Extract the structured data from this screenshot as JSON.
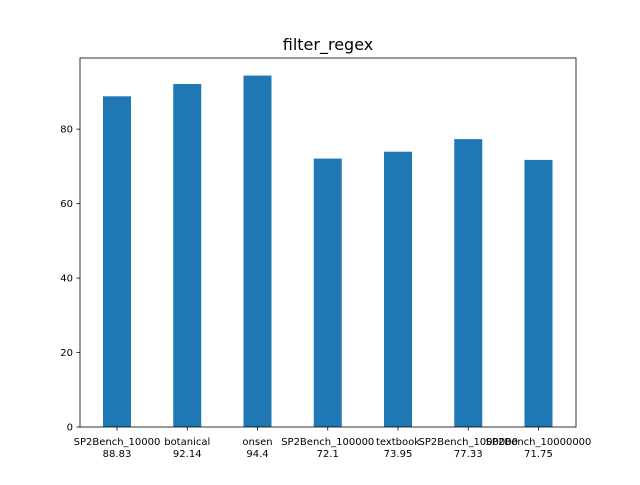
{
  "chart_data": {
    "type": "bar",
    "title": "filter_regex",
    "xlabel": "",
    "ylabel": "",
    "categories": [
      "SP2Bench_10000",
      "botanical",
      "onsen",
      "SP2Bench_100000",
      "textbook",
      "SP2Bench_1000000",
      "SP2Bench_10000000"
    ],
    "value_labels": [
      "88.83",
      "92.14",
      "94.4",
      "72.1",
      "73.95",
      "77.33",
      "71.75"
    ],
    "values": [
      88.83,
      92.14,
      94.4,
      72.1,
      73.95,
      77.33,
      71.75
    ],
    "ylim": [
      0,
      99.12
    ],
    "yticks": [
      0,
      20,
      40,
      60,
      80
    ],
    "grid": false,
    "bar_color": "#1f77b4"
  }
}
